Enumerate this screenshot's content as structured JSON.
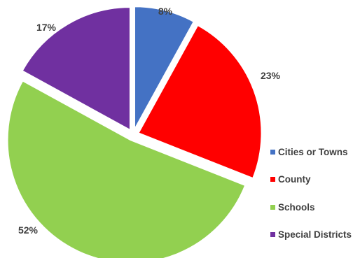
{
  "chart_data": {
    "type": "pie",
    "categories": [
      "Cities or Towns",
      "County",
      "Schools",
      "Special Districts"
    ],
    "values": [
      8,
      23,
      52,
      17
    ],
    "value_labels": [
      "8%",
      "23%",
      "52%",
      "17%"
    ],
    "colors": [
      "#4472C4",
      "#FF0000",
      "#92D050",
      "#7030A0"
    ],
    "exploded": true,
    "legend_position": "right"
  }
}
